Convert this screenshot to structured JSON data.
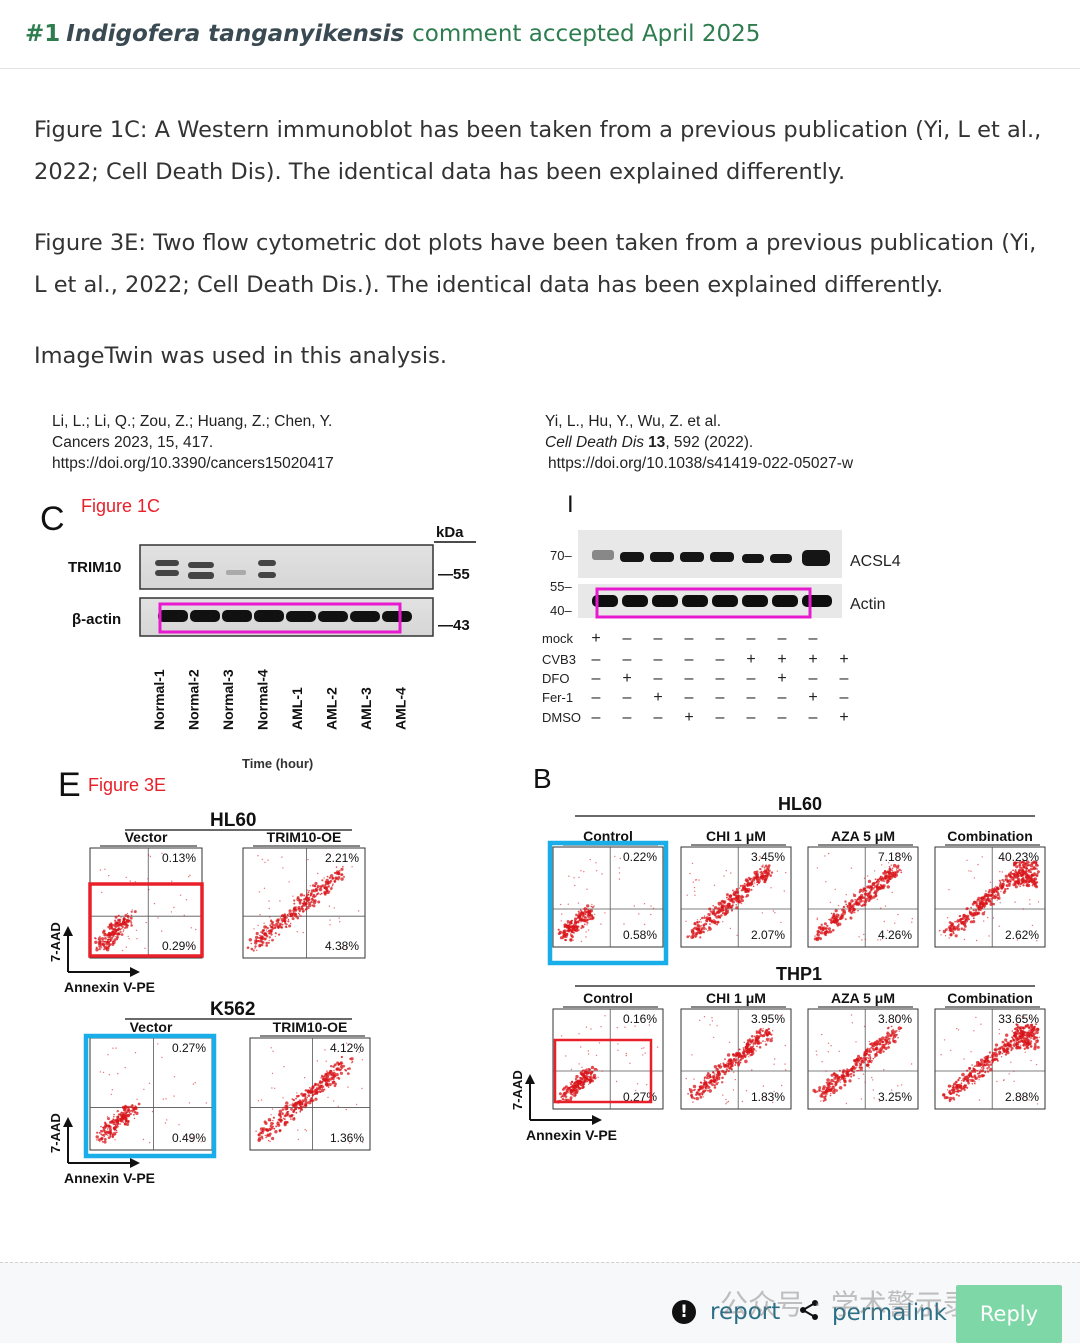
{
  "header": {
    "number": "#1",
    "species": "Indigofera tanganyikensis",
    "status": "comment accepted April 2025"
  },
  "comment": {
    "paragraphs": [
      "Figure 1C: A Western immunoblot has been taken from a previous publication (Yi, L et al., 2022; Cell Death Dis). The identical data has been explained differently.",
      "Figure 3E: Two flow cytometric dot plots have been taken from a previous publication (Yi, L et al., 2022; Cell Death Dis.). The identical data has been explained differently.",
      "ImageTwin was used in this analysis."
    ]
  },
  "figure": {
    "left_ref": {
      "line1": "Li, L.; Li, Q.; Zou, Z.; Huang, Z.; Chen, Y.",
      "line2": "Cancers 2023, 15, 417.",
      "line3": "https://doi.org/10.3390/cancers15020417"
    },
    "right_ref": {
      "line1": "Yi, L., Hu, Y., Wu, Z. et al.",
      "journal": "Cell Death Dis",
      "volume": "13",
      "rest": ", 592 (2022).",
      "line3": "https://doi.org/10.1038/s41419-022-05027-w"
    },
    "panel_c": {
      "letter": "C",
      "tag": "Figure 1C",
      "kda": "kDa",
      "band1": "TRIM10",
      "band2": "β-actin",
      "mw1": "—55",
      "mw2": "—43",
      "lanes": [
        "Normal-1",
        "Normal-2",
        "Normal-3",
        "Normal-4",
        "AML-1",
        "AML-2",
        "AML-3",
        "AML-4"
      ],
      "cut": "Time (hour)"
    },
    "panel_i": {
      "letter": "I",
      "mw": [
        "70–",
        "55–",
        "40–"
      ],
      "band1": "ACSL4",
      "band2": "Actin",
      "rows": [
        {
          "label": "mock",
          "signs": [
            "+",
            "–",
            "–",
            "–",
            "–",
            "–",
            "–",
            "–"
          ]
        },
        {
          "label": "CVB3",
          "signs": [
            "–",
            "–",
            "–",
            "–",
            "–",
            "+",
            "+",
            "+",
            "+"
          ]
        },
        {
          "label": "DFO",
          "signs": [
            "–",
            "+",
            "–",
            "–",
            "–",
            "–",
            "+",
            "–",
            "–"
          ]
        },
        {
          "label": "Fer-1",
          "signs": [
            "–",
            "–",
            "+",
            "–",
            "–",
            "–",
            "–",
            "+",
            "–"
          ]
        },
        {
          "label": "DMSO",
          "signs": [
            "–",
            "–",
            "–",
            "+",
            "–",
            "–",
            "–",
            "–",
            "+"
          ]
        }
      ]
    },
    "panel_e": {
      "letter": "E",
      "tag": "Figure 3E",
      "hl60": "HL60",
      "k562": "K562",
      "hl60_plots": [
        {
          "label": "Vector",
          "ur": "0.13%",
          "lr": "0.29%"
        },
        {
          "label": "TRIM10-OE",
          "ur": "2.21%",
          "lr": "4.38%"
        }
      ],
      "k562_plots": [
        {
          "label": "Vector",
          "ur": "0.27%",
          "lr": "0.49%"
        },
        {
          "label": "TRIM10-OE",
          "ur": "4.12%",
          "lr": "1.36%"
        }
      ],
      "xlabel": "Annexin V-PE",
      "ylabel": "7-AAD"
    },
    "panel_b": {
      "letter": "B",
      "hl60": "HL60",
      "thp1": "THP1",
      "hl60_plots": [
        {
          "label": "Control",
          "ur": "0.22%",
          "lr": "0.58%"
        },
        {
          "label": "CHI 1 μM",
          "ur": "3.45%",
          "lr": "2.07%"
        },
        {
          "label": "AZA 5 μM",
          "ur": "7.18%",
          "lr": "4.26%"
        },
        {
          "label": "Combination",
          "ur": "40.23%",
          "lr": "2.62%"
        }
      ],
      "thp1_plots": [
        {
          "label": "Control",
          "ur": "0.16%",
          "lr": "0.27%"
        },
        {
          "label": "CHI 1 μM",
          "ur": "3.95%",
          "lr": "1.83%"
        },
        {
          "label": "AZA 5 μM",
          "ur": "3.80%",
          "lr": "3.25%"
        },
        {
          "label": "Combination",
          "ur": "33.65%",
          "lr": "2.88%"
        }
      ],
      "xlabel": "Annexin V-PE",
      "ylabel": "7-AAD"
    }
  },
  "footer": {
    "report": "report",
    "permalink": "permalink",
    "reply": "Reply",
    "watermark": "公众号 · 学术警示录"
  }
}
